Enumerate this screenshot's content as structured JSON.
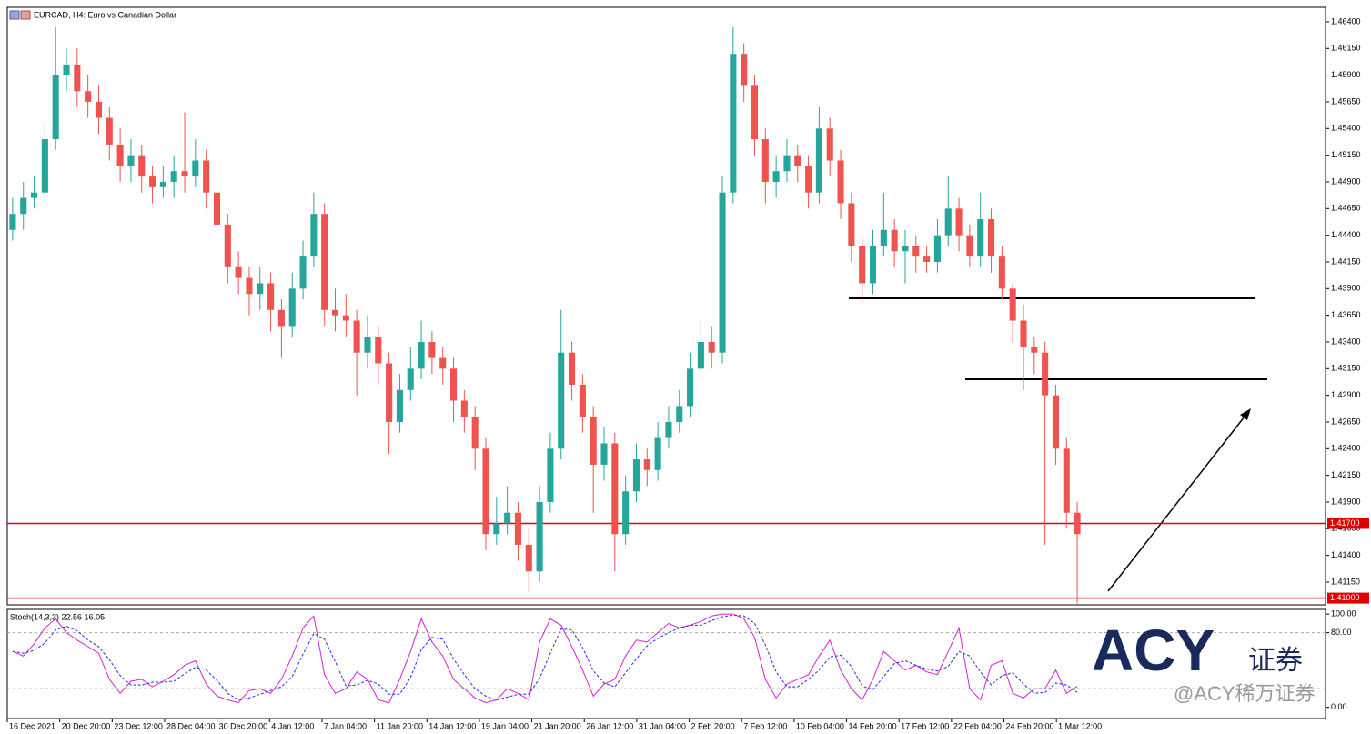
{
  "header": {
    "title": "EURCAD, H4:  Euro vs Canadian Dollar"
  },
  "watermark": {
    "logo": "ACY",
    "logo_sub": "证券",
    "handle": "@ACY稀万证券"
  },
  "chart_data": [
    {
      "type": "candlestick",
      "ylim": [
        1.40937,
        1.46536
      ],
      "yticks": [
        {
          "value": 1.464,
          "label": "1.46400"
        },
        {
          "value": 1.4615,
          "label": "1.46150"
        },
        {
          "value": 1.459,
          "label": "1.45900"
        },
        {
          "value": 1.4565,
          "label": "1.45650"
        },
        {
          "value": 1.454,
          "label": "1.45400"
        },
        {
          "value": 1.4515,
          "label": "1.45150"
        },
        {
          "value": 1.449,
          "label": "1.44900"
        },
        {
          "value": 1.4465,
          "label": "1.44650"
        },
        {
          "value": 1.444,
          "label": "1.44400"
        },
        {
          "value": 1.4415,
          "label": "1.44150"
        },
        {
          "value": 1.439,
          "label": "1.43900"
        },
        {
          "value": 1.4365,
          "label": "1.43650"
        },
        {
          "value": 1.434,
          "label": "1.43400"
        },
        {
          "value": 1.4315,
          "label": "1.43150"
        },
        {
          "value": 1.429,
          "label": "1.42900"
        },
        {
          "value": 1.4265,
          "label": "1.42650"
        },
        {
          "value": 1.424,
          "label": "1.42400"
        },
        {
          "value": 1.4215,
          "label": "1.42150"
        },
        {
          "value": 1.419,
          "label": "1.41900"
        },
        {
          "value": 1.4165,
          "label": "1.41650"
        },
        {
          "value": 1.414,
          "label": "1.41400"
        },
        {
          "value": 1.4115,
          "label": "1.41150"
        }
      ],
      "hlines": [
        {
          "value": 1.417,
          "label": "1.41700",
          "color": "#e00000"
        },
        {
          "value": 1.41,
          "label": "1.41000",
          "color": "#e00000"
        }
      ],
      "up_color": "#26a69a",
      "down_color": "#ef5350",
      "x_labels": [
        "16 Dec 2021",
        "20 Dec 20:00",
        "23 Dec 12:00",
        "28 Dec 04:00",
        "30 Dec 20:00",
        "4 Jan 12:00",
        "7 Jan 04:00",
        "11 Jan 20:00",
        "14 Jan 12:00",
        "19 Jan 04:00",
        "21 Jan 20:00",
        "26 Jan 12:00",
        "31 Jan 04:00",
        "2 Feb 20:00",
        "7 Feb 12:00",
        "10 Feb 04:00",
        "14 Feb 20:00",
        "17 Feb 12:00",
        "22 Feb 04:00",
        "24 Feb 20:00",
        "1 Mar 12:00"
      ],
      "open": [
        1.4445,
        1.446,
        1.4475,
        1.448,
        1.453,
        1.459,
        1.46,
        1.4575,
        1.4565,
        1.455,
        1.4525,
        1.4505,
        1.4515,
        1.4495,
        1.4485,
        1.449,
        1.45,
        1.4495,
        1.451,
        1.448,
        1.445,
        1.441,
        1.44,
        1.4385,
        1.4395,
        1.437,
        1.4355,
        1.439,
        1.442,
        1.446,
        1.437,
        1.4365,
        1.436,
        1.433,
        1.4345,
        1.432,
        1.4265,
        1.4295,
        1.4315,
        1.434,
        1.4325,
        1.4315,
        1.4285,
        1.427,
        1.424,
        1.416,
        1.417,
        1.418,
        1.415,
        1.4125,
        1.419,
        1.424,
        1.433,
        1.43,
        1.427,
        1.4225,
        1.4245,
        1.416,
        1.42,
        1.423,
        1.422,
        1.425,
        1.4265,
        1.428,
        1.4315,
        1.434,
        1.433,
        1.448,
        1.461,
        1.458,
        1.453,
        1.449,
        1.45,
        1.4515,
        1.4505,
        1.448,
        1.454,
        1.451,
        1.447,
        1.443,
        1.4395,
        1.443,
        1.4445,
        1.4425,
        1.443,
        1.442,
        1.4415,
        1.444,
        1.4465,
        1.444,
        1.442,
        1.4455,
        1.442,
        1.439,
        1.436,
        1.4335,
        1.433,
        1.429,
        1.424,
        1.418
      ],
      "high": [
        1.4475,
        1.449,
        1.4495,
        1.4545,
        1.4635,
        1.4615,
        1.4615,
        1.459,
        1.458,
        1.456,
        1.454,
        1.453,
        1.4525,
        1.4505,
        1.4505,
        1.4515,
        1.4555,
        1.453,
        1.452,
        1.449,
        1.446,
        1.4425,
        1.441,
        1.441,
        1.4405,
        1.438,
        1.4405,
        1.4435,
        1.448,
        1.447,
        1.439,
        1.4385,
        1.437,
        1.4365,
        1.4355,
        1.433,
        1.431,
        1.4335,
        1.436,
        1.435,
        1.4335,
        1.4325,
        1.4295,
        1.428,
        1.425,
        1.4195,
        1.4205,
        1.419,
        1.4165,
        1.4205,
        1.4255,
        1.437,
        1.434,
        1.431,
        1.428,
        1.426,
        1.4255,
        1.4215,
        1.4245,
        1.424,
        1.4265,
        1.428,
        1.4295,
        1.433,
        1.436,
        1.4355,
        1.4495,
        1.4635,
        1.462,
        1.459,
        1.454,
        1.4515,
        1.453,
        1.4525,
        1.4515,
        1.456,
        1.455,
        1.452,
        1.448,
        1.444,
        1.4445,
        1.448,
        1.4455,
        1.4445,
        1.444,
        1.443,
        1.4455,
        1.4495,
        1.4475,
        1.445,
        1.448,
        1.4465,
        1.443,
        1.4395,
        1.4375,
        1.4345,
        1.434,
        1.43,
        1.425,
        1.419
      ],
      "low": [
        1.4435,
        1.4445,
        1.4465,
        1.447,
        1.452,
        1.4575,
        1.456,
        1.455,
        1.4535,
        1.451,
        1.449,
        1.449,
        1.448,
        1.447,
        1.4475,
        1.4475,
        1.448,
        1.4485,
        1.4465,
        1.4435,
        1.4395,
        1.4385,
        1.4365,
        1.437,
        1.435,
        1.4325,
        1.4345,
        1.438,
        1.441,
        1.4355,
        1.435,
        1.4345,
        1.429,
        1.4315,
        1.43,
        1.4235,
        1.4255,
        1.4285,
        1.4305,
        1.431,
        1.43,
        1.4265,
        1.4255,
        1.422,
        1.4145,
        1.415,
        1.416,
        1.4135,
        1.4105,
        1.4115,
        1.418,
        1.423,
        1.4285,
        1.4255,
        1.418,
        1.421,
        1.4125,
        1.415,
        1.419,
        1.4205,
        1.421,
        1.424,
        1.4255,
        1.427,
        1.4305,
        1.4315,
        1.432,
        1.447,
        1.4565,
        1.4515,
        1.447,
        1.4475,
        1.449,
        1.449,
        1.4465,
        1.447,
        1.4495,
        1.4455,
        1.4415,
        1.4375,
        1.4385,
        1.442,
        1.441,
        1.4395,
        1.4405,
        1.4405,
        1.4405,
        1.443,
        1.4425,
        1.441,
        1.441,
        1.4405,
        1.438,
        1.434,
        1.4295,
        1.431,
        1.415,
        1.4225,
        1.4165,
        1.4095
      ],
      "close": [
        1.446,
        1.4475,
        1.448,
        1.453,
        1.459,
        1.46,
        1.4575,
        1.4565,
        1.455,
        1.4525,
        1.4505,
        1.4515,
        1.4495,
        1.4485,
        1.449,
        1.45,
        1.4495,
        1.451,
        1.448,
        1.445,
        1.441,
        1.44,
        1.4385,
        1.4395,
        1.437,
        1.4355,
        1.439,
        1.442,
        1.446,
        1.437,
        1.4365,
        1.436,
        1.433,
        1.4345,
        1.432,
        1.4265,
        1.4295,
        1.4315,
        1.434,
        1.4325,
        1.4315,
        1.4285,
        1.427,
        1.424,
        1.416,
        1.417,
        1.418,
        1.415,
        1.4125,
        1.419,
        1.424,
        1.433,
        1.43,
        1.427,
        1.4225,
        1.4245,
        1.416,
        1.42,
        1.423,
        1.422,
        1.425,
        1.4265,
        1.428,
        1.4315,
        1.434,
        1.433,
        1.448,
        1.461,
        1.458,
        1.453,
        1.449,
        1.45,
        1.4515,
        1.4505,
        1.448,
        1.454,
        1.451,
        1.447,
        1.443,
        1.4395,
        1.443,
        1.4445,
        1.4425,
        1.443,
        1.442,
        1.4415,
        1.444,
        1.4465,
        1.444,
        1.442,
        1.4455,
        1.442,
        1.439,
        1.436,
        1.4335,
        1.433,
        1.429,
        1.424,
        1.418,
        1.416
      ]
    },
    {
      "type": "line",
      "title": "Stoch(14,3,3) 22.56 16.05",
      "ylim": [
        -12,
        105
      ],
      "yticks": [
        {
          "value": 100,
          "label": "100.00"
        },
        {
          "value": 80,
          "label": "80.00"
        },
        {
          "value": 0,
          "label": "0.00"
        }
      ],
      "levels": [
        80,
        20
      ],
      "series": [
        {
          "color": "#d61fd6",
          "dashed": false,
          "values": [
            60,
            55,
            68,
            85,
            95,
            80,
            72,
            65,
            58,
            30,
            15,
            28,
            30,
            22,
            28,
            35,
            45,
            50,
            25,
            12,
            8,
            5,
            18,
            20,
            15,
            30,
            55,
            85,
            98,
            35,
            15,
            20,
            38,
            30,
            8,
            5,
            30,
            60,
            95,
            70,
            55,
            30,
            20,
            10,
            5,
            8,
            20,
            15,
            8,
            70,
            95,
            88,
            65,
            40,
            12,
            25,
            30,
            55,
            72,
            70,
            80,
            90,
            85,
            88,
            92,
            98,
            100,
            100,
            95,
            75,
            30,
            10,
            25,
            30,
            35,
            55,
            72,
            40,
            20,
            8,
            30,
            60,
            50,
            40,
            45,
            38,
            35,
            60,
            85,
            20,
            8,
            45,
            50,
            15,
            10,
            20,
            20,
            40,
            15,
            22.56
          ]
        },
        {
          "color": "#2a2adf",
          "dashed": true,
          "values": [
            60,
            58,
            61,
            69,
            83,
            87,
            82,
            72,
            65,
            51,
            34,
            24,
            24,
            27,
            27,
            28,
            36,
            43,
            40,
            29,
            15,
            8,
            10,
            14,
            18,
            22,
            33,
            57,
            79,
            73,
            49,
            23,
            24,
            29,
            25,
            14,
            14,
            32,
            62,
            75,
            73,
            52,
            35,
            20,
            12,
            8,
            11,
            14,
            14,
            31,
            58,
            84,
            83,
            64,
            39,
            26,
            22,
            37,
            52,
            66,
            74,
            80,
            85,
            88,
            88,
            93,
            97,
            99,
            98,
            90,
            67,
            38,
            22,
            22,
            30,
            40,
            54,
            56,
            44,
            23,
            19,
            33,
            47,
            50,
            45,
            41,
            39,
            44,
            60,
            55,
            38,
            24,
            34,
            37,
            25,
            15,
            16,
            26,
            24,
            16.05
          ]
        }
      ]
    }
  ]
}
